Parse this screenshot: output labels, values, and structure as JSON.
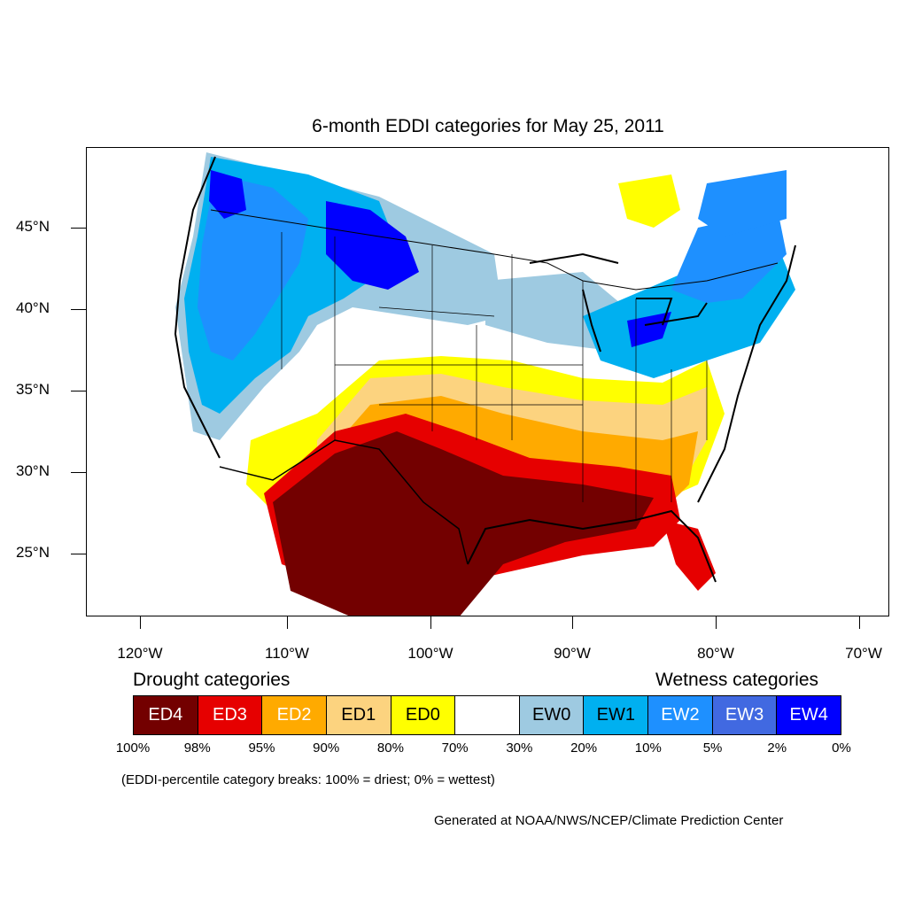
{
  "title": "6-month EDDI categories for May 25, 2011",
  "latitude_labels": [
    "45°N",
    "40°N",
    "35°N",
    "30°N",
    "25°N"
  ],
  "longitude_labels": [
    "120°W",
    "110°W",
    "100°W",
    "90°W",
    "80°W",
    "70°W"
  ],
  "legend": {
    "drought_heading": "Drought categories",
    "wetness_heading": "Wetness categories",
    "categories": [
      {
        "label": "ED4",
        "color": "#730000",
        "text_color": "#ffffff"
      },
      {
        "label": "ED3",
        "color": "#e60000",
        "text_color": "#ffffff"
      },
      {
        "label": "ED2",
        "color": "#ffaa00",
        "text_color": "#ffffff"
      },
      {
        "label": "ED1",
        "color": "#fcd37f",
        "text_color": "#000000"
      },
      {
        "label": "ED0",
        "color": "#ffff00",
        "text_color": "#000000"
      },
      {
        "label": "",
        "color": "#ffffff",
        "text_color": "#000000"
      },
      {
        "label": "EW0",
        "color": "#9ecae1",
        "text_color": "#000000"
      },
      {
        "label": "EW1",
        "color": "#00b0f0",
        "text_color": "#000000"
      },
      {
        "label": "EW2",
        "color": "#1e90ff",
        "text_color": "#ffffff"
      },
      {
        "label": "EW3",
        "color": "#4169e1",
        "text_color": "#ffffff"
      },
      {
        "label": "EW4",
        "color": "#0000ff",
        "text_color": "#ffffff"
      }
    ],
    "breaks": [
      "100%",
      "98%",
      "95%",
      "90%",
      "80%",
      "70%",
      "30%",
      "20%",
      "10%",
      "5%",
      "2%",
      "0%"
    ]
  },
  "note": "(EDDI-percentile category breaks: 100% = driest; 0% = wettest)",
  "credit": "Generated at NOAA/NWS/NCEP/Climate Prediction Center"
}
